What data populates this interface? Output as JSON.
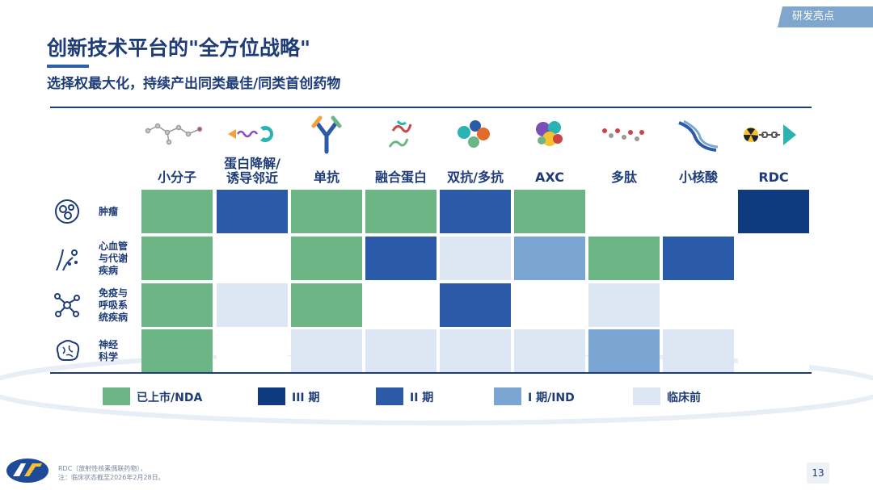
{
  "tag": "研发亮点",
  "title": "创新技术平台的\"全方位战略\"",
  "subtitle": "选择权最大化，持续产出同类最佳/同类首创药物",
  "columns": [
    "小分子",
    "蛋白降解/\n诱导邻近",
    "单抗",
    "融合蛋白",
    "双抗/多抗",
    "AXC",
    "多肽",
    "小核酸",
    "RDC"
  ],
  "column_icons": [
    "small-molecule-icon",
    "protein-degrader-icon",
    "antibody-icon",
    "fusion-protein-icon",
    "bispecific-antibody-icon",
    "axc-icon",
    "peptide-icon",
    "oligonucleotide-icon",
    "rdc-icon"
  ],
  "rows": [
    {
      "label": "肿瘤",
      "icon": "cells-icon",
      "cells": [
        "approved",
        "II",
        "approved",
        "approved",
        "II",
        "approved",
        "none",
        "none",
        "III"
      ]
    },
    {
      "label": "心血管\n与代谢\n疾病",
      "icon": "metabolic-icon",
      "cells": [
        "approved",
        "none",
        "approved",
        "II",
        "preclinical",
        "I",
        "approved",
        "II",
        "none"
      ]
    },
    {
      "label": "免疫与\n呼吸系\n统疾病",
      "icon": "molecule-network-icon",
      "cells": [
        "approved",
        "preclinical",
        "approved",
        "none",
        "II",
        "none",
        "preclinical",
        "none",
        "none"
      ]
    },
    {
      "label": "神经\n科学",
      "icon": "brain-icon",
      "cells": [
        "approved",
        "none",
        "preclinical",
        "preclinical",
        "preclinical",
        "preclinical",
        "I",
        "preclinical",
        "none"
      ]
    }
  ],
  "status_colors": {
    "approved": "#6cb584",
    "III": "#0f3a80",
    "II": "#2a5aa8",
    "I": "#7ba5d2",
    "preclinical": "#dde7f3",
    "none": "#ffffff"
  },
  "legend": [
    {
      "key": "approved",
      "label": "已上市/NDA"
    },
    {
      "key": "III",
      "label": "III 期"
    },
    {
      "key": "II",
      "label": "II 期"
    },
    {
      "key": "I",
      "label": "I 期/IND"
    },
    {
      "key": "preclinical",
      "label": "临床前"
    }
  ],
  "footnotes": [
    "RDC（放射性核素偶联药物），",
    "注：临床状态截至2026年2月28日。"
  ],
  "page_number": "13"
}
